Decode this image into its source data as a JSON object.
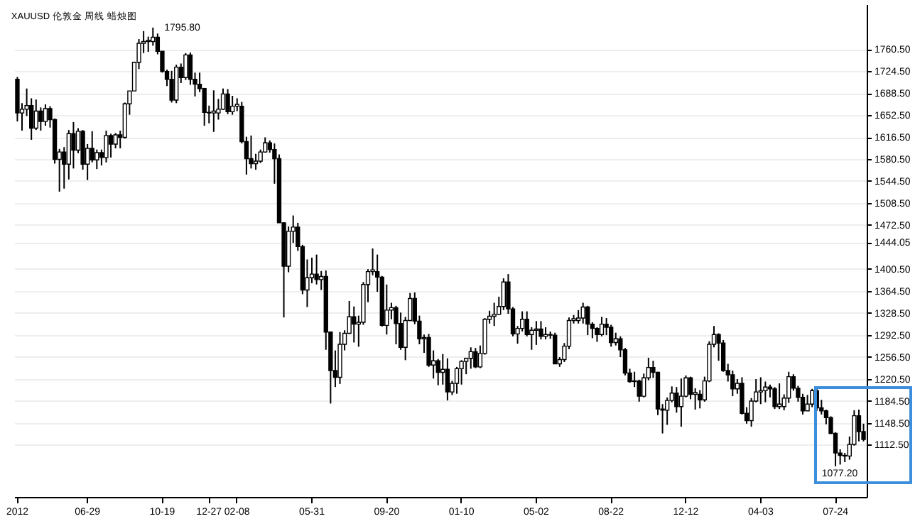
{
  "chart_data": {
    "type": "candlestick",
    "title": "XAUUSD 伦敦金 周线 蜡烛图",
    "categories": [
      "2012",
      null,
      null,
      null,
      null,
      null,
      null,
      null,
      null,
      null,
      null,
      null,
      null,
      null,
      null,
      "06-29",
      null,
      null,
      null,
      null,
      null,
      null,
      null,
      null,
      null,
      null,
      null,
      null,
      null,
      null,
      null,
      "10-19",
      null,
      null,
      null,
      null,
      null,
      null,
      null,
      null,
      null,
      "12-27",
      null,
      null,
      null,
      null,
      null,
      "02-08",
      null,
      null,
      null,
      null,
      null,
      null,
      null,
      null,
      null,
      null,
      null,
      null,
      null,
      null,
      null,
      "05-31",
      null,
      null,
      null,
      null,
      null,
      null,
      null,
      null,
      null,
      null,
      null,
      null,
      null,
      null,
      null,
      "09-20",
      null,
      null,
      null,
      null,
      null,
      null,
      null,
      null,
      null,
      null,
      null,
      null,
      null,
      null,
      null,
      "01-10",
      null,
      null,
      null,
      null,
      null,
      null,
      null,
      null,
      null,
      null,
      null,
      null,
      null,
      null,
      null,
      "05-02",
      null,
      null,
      null,
      null,
      null,
      null,
      null,
      null,
      null,
      null,
      null,
      null,
      null,
      null,
      null,
      "08-22",
      null,
      null,
      null,
      null,
      null,
      null,
      null,
      null,
      null,
      null,
      null,
      null,
      null,
      null,
      null,
      "12-12",
      null,
      null,
      null,
      null,
      null,
      null,
      null,
      null,
      null,
      null,
      null,
      null,
      null,
      null,
      null,
      "04-03",
      null,
      null,
      null,
      null,
      null,
      null,
      null,
      null,
      null,
      null,
      null,
      null,
      null,
      null,
      null,
      "07-24",
      null,
      null,
      null,
      null,
      null,
      null
    ],
    "ohlc": [
      [
        1711,
        1715,
        1642,
        1656
      ],
      [
        1656,
        1672,
        1627,
        1662
      ],
      [
        1662,
        1696,
        1651,
        1668
      ],
      [
        1668,
        1680,
        1612,
        1631
      ],
      [
        1631,
        1678,
        1628,
        1659
      ],
      [
        1659,
        1665,
        1627,
        1642
      ],
      [
        1642,
        1670,
        1635,
        1663
      ],
      [
        1663,
        1667,
        1632,
        1645
      ],
      [
        1645,
        1647,
        1573,
        1580
      ],
      [
        1580,
        1597,
        1527,
        1592
      ],
      [
        1592,
        1600,
        1532,
        1572
      ],
      [
        1572,
        1628,
        1547,
        1622
      ],
      [
        1622,
        1641,
        1565,
        1595
      ],
      [
        1595,
        1631,
        1590,
        1626
      ],
      [
        1626,
        1628,
        1563,
        1572
      ],
      [
        1572,
        1605,
        1546,
        1598
      ],
      [
        1598,
        1626,
        1575,
        1579
      ],
      [
        1579,
        1596,
        1564,
        1591
      ],
      [
        1591,
        1596,
        1570,
        1583
      ],
      [
        1583,
        1627,
        1575,
        1619
      ],
      [
        1619,
        1622,
        1583,
        1605
      ],
      [
        1605,
        1623,
        1598,
        1620
      ],
      [
        1620,
        1627,
        1598,
        1616
      ],
      [
        1616,
        1673,
        1614,
        1671
      ],
      [
        1671,
        1692,
        1653,
        1692
      ],
      [
        1692,
        1740,
        1692,
        1739
      ],
      [
        1739,
        1777,
        1728,
        1770
      ],
      [
        1770,
        1790,
        1754,
        1773
      ],
      [
        1773,
        1781,
        1756,
        1775
      ],
      [
        1773,
        1795.8,
        1766,
        1780
      ],
      [
        1780,
        1786,
        1752,
        1757
      ],
      [
        1757,
        1757,
        1722,
        1724
      ],
      [
        1724,
        1727,
        1700,
        1711
      ],
      [
        1711,
        1725,
        1673,
        1677
      ],
      [
        1677,
        1735,
        1672,
        1731
      ],
      [
        1731,
        1737,
        1705,
        1714
      ],
      [
        1714,
        1754,
        1710,
        1751
      ],
      [
        1751,
        1755,
        1702,
        1711
      ],
      [
        1711,
        1722,
        1683,
        1703
      ],
      [
        1703,
        1722,
        1690,
        1696
      ],
      [
        1696,
        1697,
        1635,
        1657
      ],
      [
        1657,
        1668,
        1639,
        1656
      ],
      [
        1656,
        1693,
        1625,
        1659
      ],
      [
        1656,
        1679,
        1645,
        1662
      ],
      [
        1662,
        1696,
        1661,
        1687
      ],
      [
        1687,
        1695,
        1654,
        1658
      ],
      [
        1658,
        1684,
        1653,
        1667
      ],
      [
        1667,
        1680,
        1659,
        1670
      ],
      [
        1667,
        1674,
        1606,
        1609
      ],
      [
        1609,
        1617,
        1555,
        1581
      ],
      [
        1581,
        1619,
        1565,
        1573
      ],
      [
        1573,
        1589,
        1563,
        1577
      ],
      [
        1577,
        1596,
        1574,
        1592
      ],
      [
        1592,
        1616,
        1591,
        1607
      ],
      [
        1607,
        1611,
        1591,
        1596
      ],
      [
        1596,
        1606,
        1540,
        1581
      ],
      [
        1581,
        1588,
        1476,
        1476
      ],
      [
        1476,
        1477,
        1321,
        1405
      ],
      [
        1405,
        1470,
        1395,
        1462
      ],
      [
        1462,
        1488,
        1443,
        1469
      ],
      [
        1469,
        1476,
        1430,
        1437
      ],
      [
        1437,
        1440,
        1359,
        1366
      ],
      [
        1366,
        1416,
        1338,
        1386
      ],
      [
        1386,
        1419,
        1377,
        1392
      ],
      [
        1392,
        1424,
        1375,
        1383
      ],
      [
        1383,
        1397,
        1366,
        1388
      ],
      [
        1388,
        1398,
        1268,
        1297
      ],
      [
        1297,
        1298,
        1180,
        1234
      ],
      [
        1234,
        1267,
        1207,
        1223
      ],
      [
        1223,
        1297,
        1212,
        1277
      ],
      [
        1277,
        1300,
        1267,
        1295
      ],
      [
        1295,
        1348,
        1294,
        1322
      ],
      [
        1322,
        1339,
        1280,
        1310
      ],
      [
        1310,
        1324,
        1273,
        1313
      ],
      [
        1313,
        1379,
        1309,
        1375
      ],
      [
        1375,
        1400,
        1346,
        1396
      ],
      [
        1396,
        1434,
        1390,
        1399
      ],
      [
        1396,
        1424,
        1363,
        1387
      ],
      [
        1387,
        1389,
        1306,
        1308
      ],
      [
        1308,
        1375,
        1293,
        1333
      ],
      [
        1333,
        1345,
        1318,
        1337
      ],
      [
        1337,
        1340,
        1277,
        1311
      ],
      [
        1311,
        1329,
        1268,
        1272
      ],
      [
        1272,
        1322,
        1251,
        1316
      ],
      [
        1316,
        1361,
        1315,
        1352
      ],
      [
        1352,
        1362,
        1310,
        1315
      ],
      [
        1315,
        1324,
        1277,
        1286
      ],
      [
        1286,
        1293,
        1263,
        1288
      ],
      [
        1288,
        1294,
        1240,
        1243
      ],
      [
        1243,
        1267,
        1221,
        1250
      ],
      [
        1250,
        1253,
        1210,
        1231
      ],
      [
        1231,
        1261,
        1211,
        1236
      ],
      [
        1236,
        1254,
        1185,
        1199
      ],
      [
        1199,
        1217,
        1194,
        1213
      ],
      [
        1213,
        1240,
        1196,
        1237
      ],
      [
        1237,
        1251,
        1211,
        1249
      ],
      [
        1249,
        1255,
        1228,
        1254
      ],
      [
        1254,
        1272,
        1237,
        1265
      ],
      [
        1265,
        1271,
        1238,
        1240
      ],
      [
        1240,
        1275,
        1238,
        1262
      ],
      [
        1262,
        1320,
        1260,
        1318
      ],
      [
        1318,
        1332,
        1311,
        1323
      ],
      [
        1323,
        1345,
        1307,
        1326
      ],
      [
        1326,
        1355,
        1325,
        1339
      ],
      [
        1339,
        1385,
        1333,
        1379
      ],
      [
        1379,
        1392,
        1327,
        1335
      ],
      [
        1335,
        1338,
        1290,
        1294
      ],
      [
        1294,
        1307,
        1278,
        1303
      ],
      [
        1303,
        1331,
        1298,
        1318
      ],
      [
        1318,
        1331,
        1290,
        1293
      ],
      [
        1293,
        1305,
        1268,
        1300
      ],
      [
        1300,
        1315,
        1276,
        1302
      ],
      [
        1302,
        1315,
        1285,
        1290
      ],
      [
        1290,
        1305,
        1285,
        1293
      ],
      [
        1293,
        1298,
        1286,
        1292
      ],
      [
        1292,
        1296,
        1245,
        1245
      ],
      [
        1245,
        1256,
        1240,
        1252
      ],
      [
        1252,
        1279,
        1248,
        1274
      ],
      [
        1274,
        1321,
        1269,
        1316
      ],
      [
        1316,
        1325,
        1311,
        1319
      ],
      [
        1316,
        1333,
        1311,
        1320
      ],
      [
        1320,
        1345,
        1311,
        1338
      ],
      [
        1338,
        1340,
        1292,
        1310
      ],
      [
        1310,
        1313,
        1287,
        1303
      ],
      [
        1303,
        1305,
        1281,
        1293
      ],
      [
        1293,
        1322,
        1290,
        1310
      ],
      [
        1310,
        1320,
        1292,
        1305
      ],
      [
        1305,
        1309,
        1273,
        1280
      ],
      [
        1280,
        1296,
        1275,
        1286
      ],
      [
        1286,
        1290,
        1256,
        1268
      ],
      [
        1268,
        1271,
        1226,
        1230
      ],
      [
        1230,
        1237,
        1214,
        1216
      ],
      [
        1216,
        1232,
        1207,
        1217
      ],
      [
        1217,
        1219,
        1183,
        1192
      ],
      [
        1192,
        1229,
        1190,
        1222
      ],
      [
        1222,
        1255,
        1218,
        1239
      ],
      [
        1239,
        1250,
        1222,
        1231
      ],
      [
        1231,
        1232,
        1161,
        1171
      ],
      [
        1171,
        1179,
        1131,
        1169
      ],
      [
        1169,
        1190,
        1145,
        1185
      ],
      [
        1185,
        1208,
        1182,
        1197
      ],
      [
        1197,
        1207,
        1165,
        1175
      ],
      [
        1175,
        1221,
        1142,
        1192
      ],
      [
        1192,
        1226,
        1190,
        1222
      ],
      [
        1222,
        1224,
        1187,
        1195
      ],
      [
        1195,
        1205,
        1170,
        1198
      ],
      [
        1195,
        1202,
        1172,
        1186
      ],
      [
        1186,
        1224,
        1183,
        1217
      ],
      [
        1217,
        1282,
        1215,
        1277
      ],
      [
        1277,
        1307,
        1272,
        1293
      ],
      [
        1293,
        1295,
        1250,
        1279
      ],
      [
        1279,
        1284,
        1232,
        1234
      ],
      [
        1234,
        1245,
        1216,
        1227
      ],
      [
        1227,
        1234,
        1192,
        1204
      ],
      [
        1204,
        1220,
        1196,
        1213
      ],
      [
        1213,
        1223,
        1162,
        1164
      ],
      [
        1164,
        1174,
        1147,
        1152
      ],
      [
        1152,
        1189,
        1142,
        1184
      ],
      [
        1184,
        1220,
        1182,
        1199
      ],
      [
        1199,
        1223,
        1179,
        1201
      ],
      [
        1201,
        1216,
        1182,
        1207
      ],
      [
        1207,
        1211,
        1190,
        1204
      ],
      [
        1204,
        1207,
        1171,
        1175
      ],
      [
        1175,
        1213,
        1171,
        1179
      ],
      [
        1175,
        1195,
        1169,
        1189
      ],
      [
        1189,
        1232,
        1181,
        1224
      ],
      [
        1224,
        1228,
        1201,
        1205
      ],
      [
        1205,
        1209,
        1183,
        1190
      ],
      [
        1190,
        1196,
        1162,
        1168
      ],
      [
        1168,
        1194,
        1168,
        1179
      ],
      [
        1179,
        1204,
        1174,
        1201
      ],
      [
        1201,
        1205,
        1168,
        1173
      ],
      [
        1173,
        1186,
        1162,
        1168
      ],
      [
        1168,
        1170,
        1146,
        1157
      ],
      [
        1157,
        1159,
        1130,
        1131
      ],
      [
        1131,
        1133,
        1077.2,
        1099
      ],
      [
        1099,
        1105,
        1080,
        1095
      ],
      [
        1095,
        1099,
        1084,
        1094
      ],
      [
        1094,
        1126,
        1088,
        1113
      ],
      [
        1113,
        1169,
        1111,
        1160
      ],
      [
        1160,
        1170,
        1118,
        1134
      ],
      [
        1134,
        1147,
        1118,
        1121
      ]
    ],
    "ylim": [
      1027,
      1834
    ],
    "yticks": [
      {
        "value": 1112.5,
        "label": "1112.50"
      },
      {
        "value": 1148.5,
        "label": "1148.50"
      },
      {
        "value": 1184.5,
        "label": "1184.50"
      },
      {
        "value": 1220.5,
        "label": "1220.50"
      },
      {
        "value": 1256.5,
        "label": "1256.50"
      },
      {
        "value": 1292.5,
        "label": "1292.50"
      },
      {
        "value": 1328.5,
        "label": "1328.50"
      },
      {
        "value": 1364.5,
        "label": "1364.50"
      },
      {
        "value": 1400.5,
        "label": "1400.50"
      },
      {
        "value": 1444.05,
        "label": "1444.05"
      },
      {
        "value": 1472.5,
        "label": "1472.50"
      },
      {
        "value": 1508.5,
        "label": "1508.50"
      },
      {
        "value": 1544.5,
        "label": "1544.50"
      },
      {
        "value": 1580.5,
        "label": "1580.50"
      },
      {
        "value": 1616.5,
        "label": "1616.50"
      },
      {
        "value": 1652.5,
        "label": "1652.50"
      },
      {
        "value": 1688.5,
        "label": "1688.50"
      },
      {
        "value": 1724.5,
        "label": "1724.50"
      },
      {
        "value": 1760.5,
        "label": "1760.50"
      }
    ],
    "grid": "y",
    "annotations": [
      "1795.80",
      "1077.20"
    ]
  }
}
